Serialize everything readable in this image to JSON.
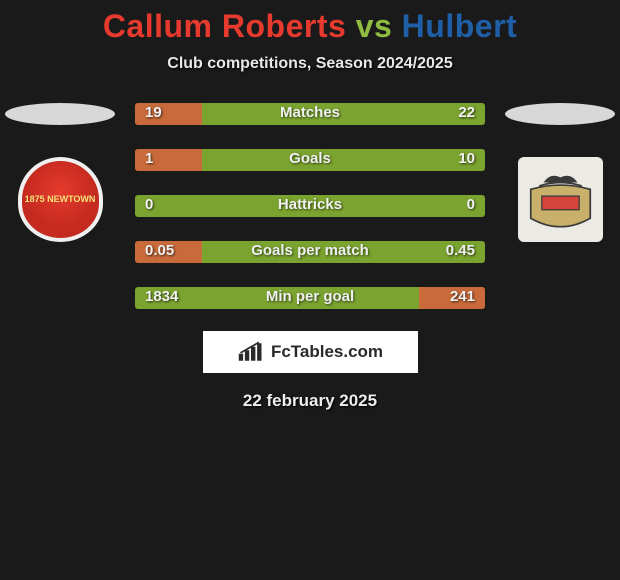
{
  "title": {
    "left": "Callum Roberts",
    "vs": "vs",
    "right": "Hulbert",
    "left_color": "#e63a2e",
    "vs_color": "#8ebc40",
    "right_color": "#1e5fa8"
  },
  "subtitle": "Club competitions, Season 2024/2025",
  "date": "22 february 2025",
  "watermark": "FcTables.com",
  "colors": {
    "bg": "#1a1a1a",
    "bar_track": "#7aa32f",
    "bar_fill": "#c86a3a",
    "text": "#f0f0f0"
  },
  "bars": [
    {
      "label": "Matches",
      "l": "19",
      "r": "22",
      "l_pct": 19,
      "r_pct": 0
    },
    {
      "label": "Goals",
      "l": "1",
      "r": "10",
      "l_pct": 19,
      "r_pct": 0
    },
    {
      "label": "Hattricks",
      "l": "0",
      "r": "0",
      "l_pct": 0,
      "r_pct": 0
    },
    {
      "label": "Goals per match",
      "l": "0.05",
      "r": "0.45",
      "l_pct": 19,
      "r_pct": 0
    },
    {
      "label": "Min per goal",
      "l": "1834",
      "r": "241",
      "l_pct": 0,
      "r_pct": 19
    }
  ],
  "crest_left_text": "1875\nNEWTOWN"
}
